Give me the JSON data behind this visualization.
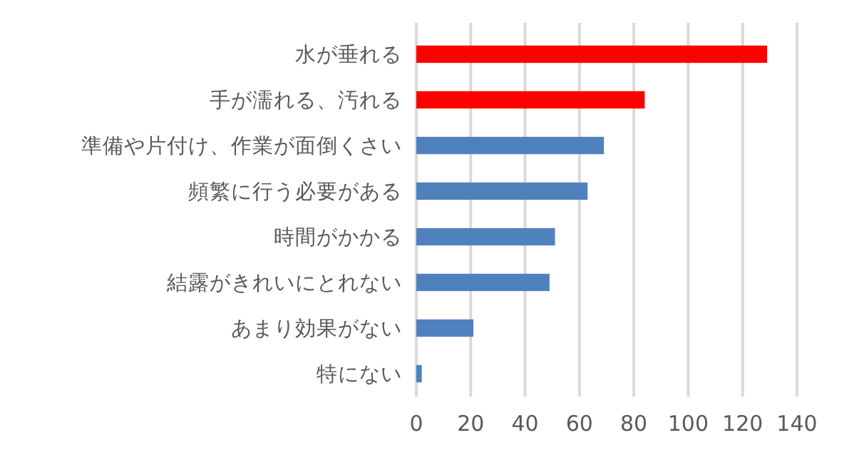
{
  "chart_data": {
    "type": "bar",
    "orientation": "horizontal",
    "categories": [
      "水が垂れる",
      "手が濡れる、汚れる",
      "準備や片付け、作業が面倒くさい",
      "頻繁に行う必要がある",
      "時間がかかる",
      "結露がきれいにとれない",
      "あまり効果がない",
      "特にない"
    ],
    "values": [
      129,
      84,
      69,
      63,
      51,
      49,
      21,
      2
    ],
    "colors": [
      "#ff0000",
      "#ff0000",
      "#4f81bd",
      "#4f81bd",
      "#4f81bd",
      "#4f81bd",
      "#4f81bd",
      "#4f81bd"
    ],
    "xlim": [
      0,
      140
    ],
    "xticks": [
      0,
      20,
      40,
      60,
      80,
      100,
      120,
      140
    ],
    "grid": "x"
  }
}
